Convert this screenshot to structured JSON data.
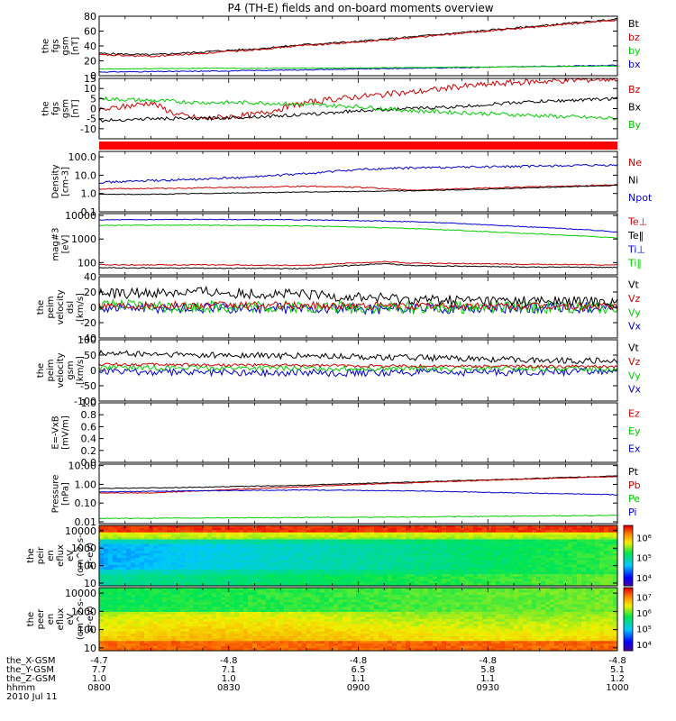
{
  "title": "P4 (TH-E) fields and on-board moments overview",
  "chart_data": [
    {
      "type": "line",
      "ylabel": [
        "the",
        "fgs",
        "gsm",
        "[nT]"
      ],
      "ylim": [
        0,
        80
      ],
      "yticks": [
        "80",
        "60",
        "40",
        "20",
        "0"
      ],
      "legend": [
        {
          "name": "Bt",
          "color": "#000000"
        },
        {
          "name": "bz",
          "color": "#cc0000"
        },
        {
          "name": "by",
          "color": "#00cc00"
        },
        {
          "name": "bx",
          "color": "#0000cc"
        }
      ],
      "series": [
        {
          "name": "Bt",
          "color": "#000000",
          "x": [
            0,
            0.1,
            0.2,
            0.3,
            0.4,
            0.5,
            0.6,
            0.7,
            0.8,
            0.9,
            1.0
          ],
          "y": [
            30,
            28,
            32,
            36,
            42,
            46,
            52,
            58,
            64,
            70,
            76
          ],
          "noise": 1.2
        },
        {
          "name": "bz",
          "color": "#cc0000",
          "x": [
            0,
            0.1,
            0.2,
            0.3,
            0.4,
            0.5,
            0.6,
            0.7,
            0.8,
            0.9,
            1.0
          ],
          "y": [
            28,
            26,
            30,
            35,
            41,
            45,
            51,
            57,
            63,
            69,
            75
          ],
          "noise": 1.2
        },
        {
          "name": "bx",
          "color": "#0000cc",
          "x": [
            0,
            0.2,
            0.4,
            0.6,
            0.8,
            1.0
          ],
          "y": [
            5,
            6,
            8,
            10,
            12,
            14
          ],
          "noise": 0.6
        },
        {
          "name": "by",
          "color": "#00cc00",
          "x": [
            0,
            0.2,
            0.4,
            0.6,
            0.8,
            1.0
          ],
          "y": [
            9,
            10,
            10,
            11,
            12,
            13
          ],
          "noise": 0.4
        }
      ]
    },
    {
      "type": "line",
      "ylabel": [
        "the",
        "fgs",
        "gsm",
        "[nT]"
      ],
      "ylim": [
        -15,
        15
      ],
      "yticks": [
        "15",
        "10",
        "5",
        "0",
        "-5",
        "-10"
      ],
      "legend": [
        {
          "name": "Bz",
          "color": "#cc0000"
        },
        {
          "name": "Bx",
          "color": "#000000"
        },
        {
          "name": "By",
          "color": "#00cc00"
        }
      ],
      "series": [
        {
          "name": "Bz",
          "color": "#cc0000",
          "x": [
            0,
            0.05,
            0.1,
            0.15,
            0.2,
            0.3,
            0.4,
            0.5,
            0.6,
            0.7,
            0.8,
            0.9,
            1.0
          ],
          "y": [
            -1,
            1,
            3,
            -3,
            -5,
            -3,
            3,
            6,
            8,
            11,
            13,
            14,
            15
          ],
          "noise": 1.5
        },
        {
          "name": "Bx",
          "color": "#000000",
          "x": [
            0,
            0.1,
            0.2,
            0.3,
            0.4,
            0.5,
            0.6,
            0.7,
            0.8,
            0.9,
            1.0
          ],
          "y": [
            -6,
            -5,
            -5,
            -4,
            -3,
            -1,
            0,
            1,
            3,
            4,
            5
          ],
          "noise": 0.8
        },
        {
          "name": "By",
          "color": "#00cc00",
          "x": [
            0,
            0.1,
            0.2,
            0.3,
            0.4,
            0.5,
            0.6,
            0.7,
            0.8,
            0.9,
            1.0
          ],
          "y": [
            5,
            4,
            3,
            3,
            2,
            1,
            -1,
            -2,
            -3,
            -4,
            -5
          ],
          "noise": 1.0
        }
      ]
    },
    {
      "type": "bar",
      "ylabel": [],
      "yticks": [],
      "legend": [],
      "band_color": "#ff0000"
    },
    {
      "type": "line",
      "ylabel": [
        "Density",
        "[cm-3]"
      ],
      "log": true,
      "ylim": [
        0.1,
        200
      ],
      "yticks": [
        "100.0",
        "10.0",
        "1.0",
        "0.1"
      ],
      "legend": [
        {
          "name": "Ne",
          "color": "#cc0000"
        },
        {
          "name": "Ni",
          "color": "#000000"
        },
        {
          "name": "Npot",
          "color": "#0000cc"
        }
      ],
      "series": [
        {
          "name": "Npot",
          "color": "#0000cc",
          "x": [
            0,
            0.1,
            0.2,
            0.3,
            0.4,
            0.5,
            0.6,
            0.7,
            0.8,
            0.9,
            1.0
          ],
          "y": [
            4,
            5,
            6,
            8,
            12,
            20,
            25,
            28,
            30,
            33,
            35
          ],
          "noise": 0.06
        },
        {
          "name": "Ne",
          "color": "#cc0000",
          "x": [
            0,
            0.1,
            0.2,
            0.3,
            0.4,
            0.5,
            0.6,
            0.7,
            0.8,
            0.9,
            1.0
          ],
          "y": [
            1.8,
            1.9,
            2.0,
            2.2,
            2.5,
            2.2,
            1.5,
            1.8,
            2.2,
            2.5,
            3
          ],
          "noise": 0.03
        },
        {
          "name": "Ni",
          "color": "#000000",
          "x": [
            0,
            0.1,
            0.2,
            0.3,
            0.4,
            0.5,
            0.6,
            0.7,
            0.8,
            0.9,
            1.0
          ],
          "y": [
            0.9,
            0.9,
            1.0,
            1.1,
            1.2,
            1.3,
            1.4,
            1.6,
            1.9,
            2.3,
            2.8
          ],
          "noise": 0.02
        }
      ]
    },
    {
      "type": "line",
      "ylabel": [
        "mag#3",
        "[eV]"
      ],
      "log": true,
      "ylim": [
        30,
        12000
      ],
      "yticks": [
        "10000",
        "1000",
        "100"
      ],
      "legend": [
        {
          "name": "Te⊥",
          "color": "#cc0000"
        },
        {
          "name": "Te‖",
          "color": "#000000"
        },
        {
          "name": "Ti⊥",
          "color": "#0000cc"
        },
        {
          "name": "Ti‖",
          "color": "#00cc00"
        }
      ],
      "series": [
        {
          "name": "Ti⊥",
          "color": "#0000cc",
          "x": [
            0,
            0.2,
            0.4,
            0.6,
            0.8,
            1.0
          ],
          "y": [
            6500,
            6800,
            6500,
            5500,
            3500,
            2000
          ],
          "noise": 0.015
        },
        {
          "name": "Ti‖",
          "color": "#00cc00",
          "x": [
            0,
            0.2,
            0.4,
            0.6,
            0.8,
            1.0
          ],
          "y": [
            3800,
            3900,
            3600,
            2800,
            1800,
            1100
          ],
          "noise": 0.015
        },
        {
          "name": "Te⊥",
          "color": "#cc0000",
          "x": [
            0,
            0.2,
            0.4,
            0.55,
            0.6,
            0.8,
            1.0
          ],
          "y": [
            80,
            80,
            75,
            110,
            95,
            85,
            80
          ],
          "noise": 0.02
        },
        {
          "name": "Te‖",
          "color": "#000000",
          "x": [
            0,
            0.2,
            0.4,
            0.55,
            0.6,
            0.8,
            1.0
          ],
          "y": [
            60,
            58,
            55,
            90,
            75,
            65,
            62
          ],
          "noise": 0.02
        }
      ]
    },
    {
      "type": "line",
      "ylabel": [
        "the",
        "peim",
        "velocity",
        "dsl",
        "[km/s]"
      ],
      "ylim": [
        -40,
        40
      ],
      "yticks": [
        "40",
        "20",
        "0",
        "-20",
        "-40"
      ],
      "legend": [
        {
          "name": "Vt",
          "color": "#000000"
        },
        {
          "name": "Vz",
          "color": "#cc0000"
        },
        {
          "name": "Vy",
          "color": "#00cc00"
        },
        {
          "name": "Vx",
          "color": "#0000cc"
        }
      ],
      "series": [
        {
          "name": "Vx",
          "color": "#0000cc",
          "x": [
            0,
            0.5,
            1.0
          ],
          "y": [
            0,
            -2,
            0
          ],
          "noise": 7
        },
        {
          "name": "Vy",
          "color": "#00cc00",
          "x": [
            0,
            0.5,
            1.0
          ],
          "y": [
            2,
            0,
            0
          ],
          "noise": 8
        },
        {
          "name": "Vz",
          "color": "#cc0000",
          "x": [
            0,
            0.5,
            1.0
          ],
          "y": [
            3,
            2,
            1
          ],
          "noise": 5
        },
        {
          "name": "Vt",
          "color": "#000000",
          "x": [
            0,
            0.2,
            0.4,
            0.6,
            0.8,
            1.0
          ],
          "y": [
            18,
            20,
            16,
            10,
            8,
            7
          ],
          "noise": 7
        }
      ]
    },
    {
      "type": "line",
      "ylabel": [
        "the",
        "peim",
        "velocity",
        "gsm",
        "[km/s]"
      ],
      "ylim": [
        -100,
        100
      ],
      "yticks": [
        "100",
        "50",
        "0",
        "-50",
        "-100"
      ],
      "legend": [
        {
          "name": "Vt",
          "color": "#000000"
        },
        {
          "name": "Vz",
          "color": "#cc0000"
        },
        {
          "name": "Vy",
          "color": "#00cc00"
        },
        {
          "name": "Vx",
          "color": "#0000cc"
        }
      ],
      "series": [
        {
          "name": "Vx",
          "color": "#0000cc",
          "x": [
            0,
            0.5,
            1.0
          ],
          "y": [
            -5,
            -8,
            -3
          ],
          "noise": 12
        },
        {
          "name": "Vy",
          "color": "#00cc00",
          "x": [
            0,
            0.5,
            1.0
          ],
          "y": [
            10,
            6,
            5
          ],
          "noise": 8
        },
        {
          "name": "Vz",
          "color": "#cc0000",
          "x": [
            0,
            0.5,
            1.0
          ],
          "y": [
            20,
            15,
            12
          ],
          "noise": 5
        },
        {
          "name": "Vt",
          "color": "#000000",
          "x": [
            0,
            0.2,
            0.5,
            0.8,
            1.0
          ],
          "y": [
            55,
            50,
            45,
            35,
            30
          ],
          "noise": 10
        }
      ]
    },
    {
      "type": "line",
      "ylabel": [
        "E=-VxB",
        "[mV/m]"
      ],
      "ylim": [
        0,
        1
      ],
      "yticks": [
        "1.0",
        "0.8",
        "0.6",
        "0.4",
        "0.2",
        "0.0"
      ],
      "legend": [
        {
          "name": "Ez",
          "color": "#cc0000"
        },
        {
          "name": "Ey",
          "color": "#00cc00"
        },
        {
          "name": "Ex",
          "color": "#0000cc"
        }
      ],
      "series": []
    },
    {
      "type": "line",
      "ylabel": [
        "Pressure",
        "[nPa]"
      ],
      "log": true,
      "ylim": [
        0.008,
        12
      ],
      "yticks": [
        "10.00",
        "1.00",
        "0.10",
        "0.01"
      ],
      "legend": [
        {
          "name": "Pt",
          "color": "#000000"
        },
        {
          "name": "Pb",
          "color": "#cc0000"
        },
        {
          "name": "Pe",
          "color": "#00cc00"
        },
        {
          "name": "Pi",
          "color": "#0000cc"
        }
      ],
      "series": [
        {
          "name": "Pt",
          "color": "#000000",
          "x": [
            0,
            0.2,
            0.4,
            0.6,
            0.8,
            1.0
          ],
          "y": [
            0.6,
            0.7,
            0.9,
            1.3,
            1.9,
            2.8
          ],
          "noise": 0.02
        },
        {
          "name": "Pb",
          "color": "#cc0000",
          "x": [
            0,
            0.1,
            0.2,
            0.4,
            0.6,
            0.8,
            1.0
          ],
          "y": [
            0.35,
            0.35,
            0.45,
            0.75,
            1.2,
            1.8,
            2.6
          ],
          "noise": 0.02
        },
        {
          "name": "Pi",
          "color": "#0000cc",
          "x": [
            0,
            0.2,
            0.4,
            0.6,
            0.8,
            1.0
          ],
          "y": [
            0.4,
            0.45,
            0.5,
            0.45,
            0.35,
            0.28
          ],
          "noise": 0.02
        },
        {
          "name": "Pe",
          "color": "#00cc00",
          "x": [
            0,
            0.2,
            0.4,
            0.6,
            0.8,
            1.0
          ],
          "y": [
            0.015,
            0.016,
            0.017,
            0.018,
            0.02,
            0.022
          ],
          "noise": 0.02
        }
      ]
    },
    {
      "type": "heatmap",
      "ylabel": [
        "the",
        "peir",
        "en",
        "eflux",
        "eV",
        "(cm^2-s-",
        "sr-eV)"
      ],
      "log": true,
      "ylim": [
        7,
        20000
      ],
      "yticks": [
        "10000",
        "1000",
        "100",
        "10"
      ],
      "colorbar": {
        "labels": [
          "10⁶",
          "10⁵",
          "10⁴"
        ],
        "values": [
          6,
          5,
          4
        ],
        "range": [
          3.6,
          6.6
        ]
      }
    },
    {
      "type": "heatmap",
      "ylabel": [
        "the",
        "peer",
        "en",
        "eflux",
        "eV",
        "(cm^2-s-",
        "sr-eV)"
      ],
      "log": true,
      "ylim": [
        7,
        20000
      ],
      "yticks": [
        "10000",
        "1000",
        "100",
        "10"
      ],
      "colorbar": {
        "labels": [
          "10⁷",
          "10⁶",
          "10⁵",
          "10⁴"
        ],
        "values": [
          7,
          6,
          5,
          4
        ],
        "range": [
          3.6,
          7.6
        ]
      }
    }
  ],
  "xaxis": {
    "rows": [
      {
        "label": "the_X-GSM",
        "values": [
          "-4.7",
          "-4.8",
          "-4.8",
          "-4.8",
          "-4.8"
        ]
      },
      {
        "label": "the_Y-GSM",
        "values": [
          "7.7",
          "7.1",
          "6.5",
          "5.8",
          "5.1"
        ]
      },
      {
        "label": "the_Z-GSM",
        "values": [
          "1.0",
          "1.0",
          "1.1",
          "1.1",
          "1.2"
        ]
      },
      {
        "label": "hhmm",
        "values": [
          "0800",
          "0830",
          "0900",
          "0930",
          "1000"
        ]
      }
    ],
    "date": "2010 Jul 11"
  }
}
